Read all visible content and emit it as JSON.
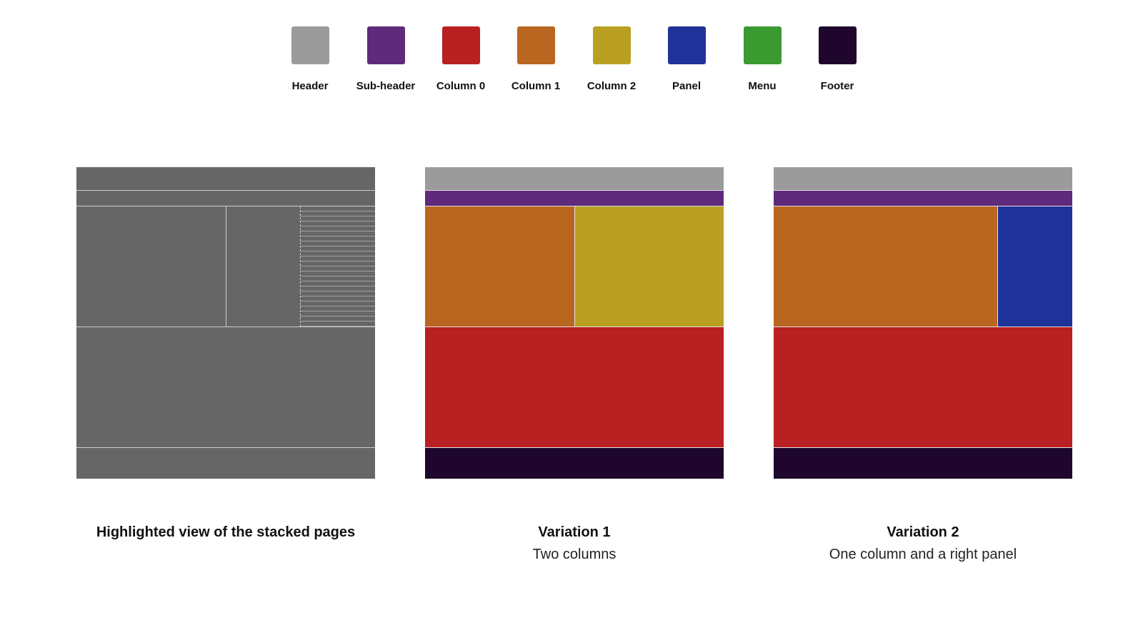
{
  "legend": [
    {
      "label": "Header",
      "color": "#9b9b9b"
    },
    {
      "label": "Sub-header",
      "color": "#5f2a7c"
    },
    {
      "label": "Column 0",
      "color": "#b92021"
    },
    {
      "label": "Column 1",
      "color": "#b96620"
    },
    {
      "label": "Column 2",
      "color": "#b9a022"
    },
    {
      "label": "Panel",
      "color": "#1f329a"
    },
    {
      "label": "Menu",
      "color": "#3a9a30"
    },
    {
      "label": "Footer",
      "color": "#1f062d"
    }
  ],
  "diagrams": [
    {
      "title": "Highlighted view of the stacked pages",
      "subtitle": ""
    },
    {
      "title": "Variation 1",
      "subtitle": "Two columns"
    },
    {
      "title": "Variation 2",
      "subtitle": "One column and a right panel"
    }
  ],
  "highlight_color": "#666666"
}
